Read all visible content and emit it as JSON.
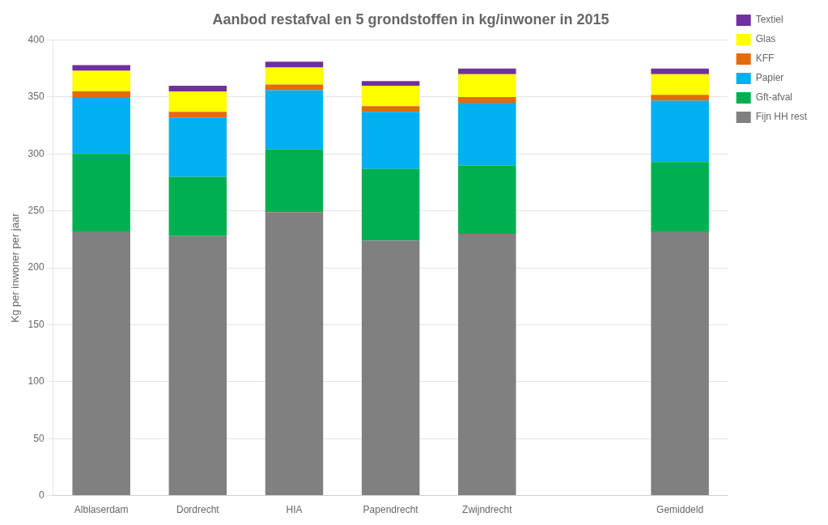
{
  "chart_data": {
    "type": "bar",
    "title": "Aanbod restafval en 5 grondstoffen in kg/inwoner in 2015",
    "ylabel": "Kg per inwoner per jaar",
    "categories": [
      "Alblaserdam",
      "Dordrecht",
      "HIA",
      "Papendrecht",
      "Zwijndrecht",
      null,
      "Gemiddeld"
    ],
    "series": [
      {
        "name": "Fijn HH rest",
        "color": "#808080",
        "values": [
          232,
          228,
          249,
          224,
          230,
          null,
          232
        ]
      },
      {
        "name": "Gft-afval",
        "color": "#00b050",
        "values": [
          68,
          52,
          55,
          63,
          60,
          null,
          61
        ]
      },
      {
        "name": "Papier",
        "color": "#00b0f0",
        "values": [
          50,
          52,
          52,
          50,
          55,
          null,
          54
        ]
      },
      {
        "name": "KFF",
        "color": "#e26b0a",
        "values": [
          5,
          5,
          5,
          5,
          5,
          null,
          5
        ]
      },
      {
        "name": "Glas",
        "color": "#ffff00",
        "values": [
          18,
          18,
          15,
          18,
          20,
          null,
          18
        ]
      },
      {
        "name": "Textiel",
        "color": "#7030a0",
        "values": [
          5,
          5,
          5,
          4,
          5,
          null,
          5
        ]
      }
    ],
    "stacked": true,
    "ylim": [
      0,
      400
    ],
    "yticks": [
      0,
      50,
      100,
      150,
      200,
      250,
      300,
      350,
      400
    ],
    "grid": true,
    "legend": "right"
  }
}
